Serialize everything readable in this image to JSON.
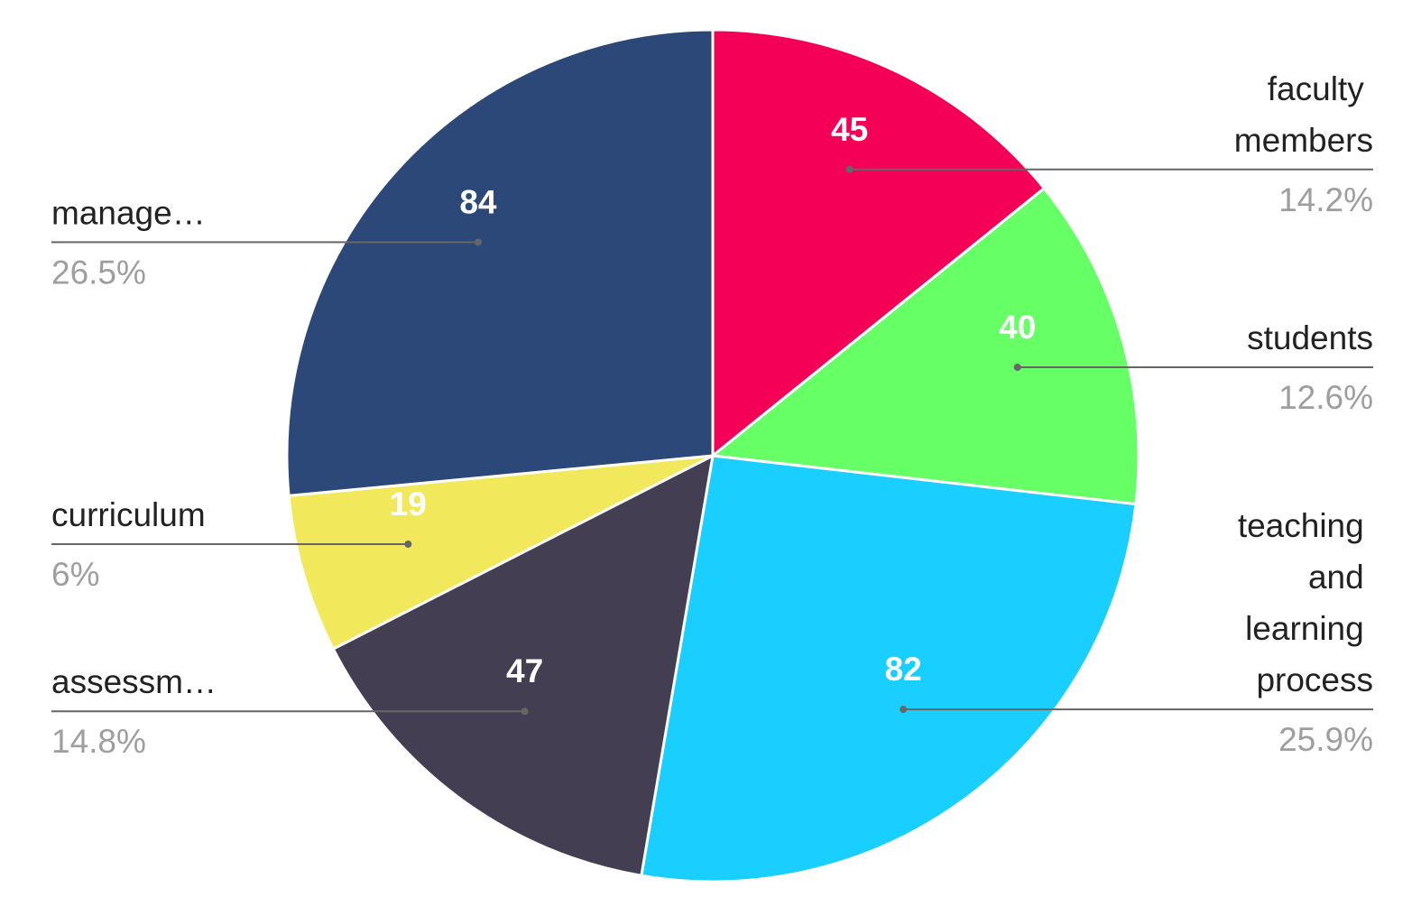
{
  "chart_data": {
    "type": "pie",
    "categories": [
      "faculty members",
      "students",
      "teaching and learning process",
      "assessm…",
      "curriculum",
      "manage…"
    ],
    "values": [
      45,
      40,
      82,
      47,
      19,
      84
    ],
    "percent_labels": [
      "14.2%",
      "12.6%",
      "25.9%",
      "14.8%",
      "6%",
      "26.5%"
    ],
    "colors": [
      "#f50057",
      "#66ff66",
      "#18cfff",
      "#433e52",
      "#f2e85c",
      "#2b4878"
    ]
  }
}
